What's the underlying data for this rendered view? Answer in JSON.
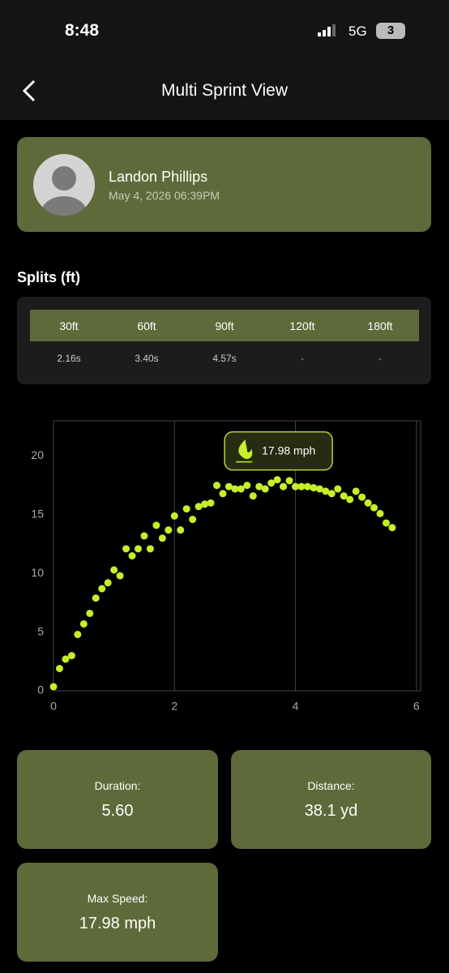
{
  "status_bar": {
    "time": "8:48",
    "network": "5G",
    "battery": "3"
  },
  "header": {
    "title": "Multi Sprint View"
  },
  "profile": {
    "name": "Landon Phillips",
    "date": "May 4, 2026 06:39PM"
  },
  "splits": {
    "title": "Splits (ft)",
    "columns": [
      "30ft",
      "60ft",
      "90ft",
      "120ft",
      "180ft"
    ],
    "rows": [
      [
        "2.16s",
        "3.40s",
        "4.57s",
        "-",
        "-"
      ]
    ]
  },
  "chart_data": {
    "type": "scatter",
    "color": "#c6ef2a",
    "annotation": "17.98 mph",
    "x": [
      0,
      0.1,
      0.2,
      0.3,
      0.4,
      0.5,
      0.6,
      0.7,
      0.8,
      0.9,
      1.0,
      1.1,
      1.2,
      1.3,
      1.4,
      1.5,
      1.6,
      1.7,
      1.8,
      1.9,
      2.0,
      2.1,
      2.2,
      2.3,
      2.4,
      2.5,
      2.6,
      2.7,
      2.8,
      2.9,
      3.0,
      3.1,
      3.2,
      3.3,
      3.4,
      3.5,
      3.6,
      3.7,
      3.8,
      3.9,
      4.0,
      4.1,
      4.2,
      4.3,
      4.4,
      4.5,
      4.6,
      4.7,
      4.8,
      4.9,
      5.0,
      5.1,
      5.2,
      5.3,
      5.4,
      5.5,
      5.6
    ],
    "values": [
      0.35,
      1.9,
      2.7,
      3.0,
      4.8,
      5.7,
      6.6,
      7.9,
      8.7,
      9.2,
      10.3,
      9.8,
      12.1,
      11.5,
      12.1,
      13.2,
      12.1,
      14.1,
      13.0,
      13.7,
      14.9,
      13.7,
      15.5,
      14.6,
      15.7,
      15.9,
      16.0,
      17.5,
      16.8,
      17.4,
      17.2,
      17.2,
      17.5,
      16.6,
      17.4,
      17.2,
      17.7,
      17.98,
      17.4,
      17.9,
      17.4,
      17.4,
      17.4,
      17.3,
      17.2,
      17.0,
      16.8,
      17.2,
      16.6,
      16.3,
      17.0,
      16.5,
      16.0,
      15.6,
      15.1,
      14.3,
      13.9
    ],
    "xlim": [
      0,
      6.07
    ],
    "ylim": [
      0,
      23
    ],
    "xticks": [
      0,
      2,
      4,
      6
    ],
    "yticks": [
      0,
      5,
      10,
      15,
      20
    ],
    "grid": "x"
  },
  "stats": [
    {
      "label": "Duration:",
      "value": "5.60"
    },
    {
      "label": "Distance:",
      "value": "38.1 yd"
    },
    {
      "label": "Max Speed:",
      "value": "17.98 mph"
    }
  ]
}
